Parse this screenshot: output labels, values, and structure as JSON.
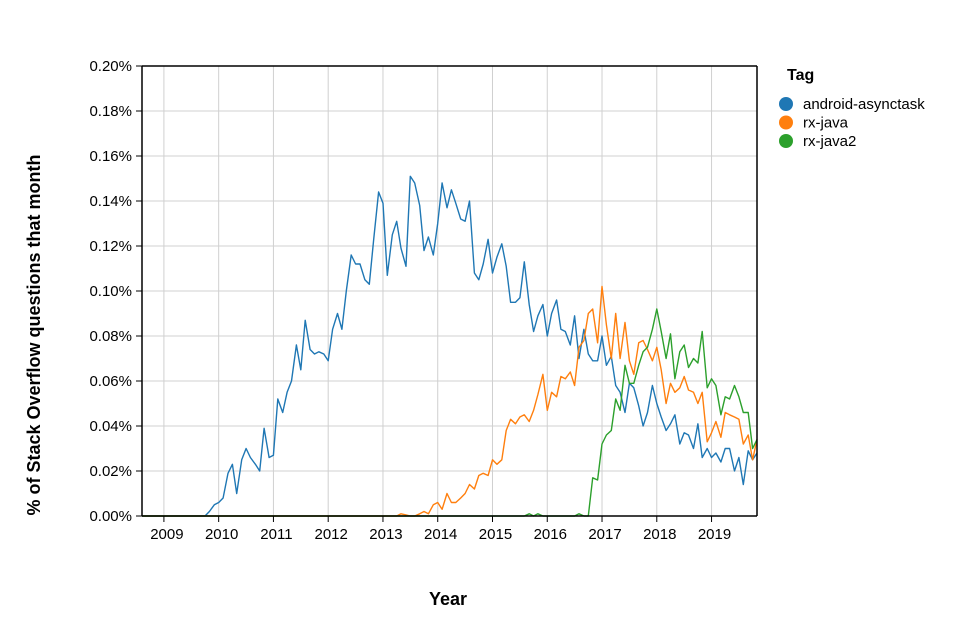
{
  "chart_data": {
    "type": "line",
    "xlabel": "Year",
    "ylabel": "% of Stack Overflow questions that month",
    "xlim": [
      2008.6,
      2019.83
    ],
    "ylim": [
      0,
      0.2
    ],
    "x_ticks": [
      2009,
      2010,
      2011,
      2012,
      2013,
      2014,
      2015,
      2016,
      2017,
      2018,
      2019
    ],
    "x_tick_labels": [
      "2009",
      "2010",
      "2011",
      "2012",
      "2013",
      "2014",
      "2015",
      "2016",
      "2017",
      "2018",
      "2019"
    ],
    "y_ticks": [
      0,
      0.02,
      0.04,
      0.06,
      0.08,
      0.1,
      0.12,
      0.14,
      0.16,
      0.18,
      0.2
    ],
    "y_tick_labels": [
      "0.00%",
      "0.02%",
      "0.04%",
      "0.06%",
      "0.08%",
      "0.10%",
      "0.12%",
      "0.14%",
      "0.16%",
      "0.18%",
      "0.20%"
    ],
    "grid": true,
    "legend": {
      "title": "Tag",
      "placement": "top-right"
    },
    "series": [
      {
        "name": "android-asynctask",
        "color": "#1f77b4",
        "points": [
          [
            2008.6,
            0
          ],
          [
            2009.5,
            0
          ],
          [
            2009.75,
            0
          ],
          [
            2009.83,
            0.002
          ],
          [
            2009.92,
            0.005
          ],
          [
            2010.0,
            0.006
          ],
          [
            2010.08,
            0.008
          ],
          [
            2010.17,
            0.019
          ],
          [
            2010.25,
            0.023
          ],
          [
            2010.33,
            0.01
          ],
          [
            2010.42,
            0.025
          ],
          [
            2010.5,
            0.03
          ],
          [
            2010.58,
            0.026
          ],
          [
            2010.67,
            0.023
          ],
          [
            2010.75,
            0.02
          ],
          [
            2010.83,
            0.039
          ],
          [
            2010.92,
            0.026
          ],
          [
            2011.0,
            0.027
          ],
          [
            2011.08,
            0.052
          ],
          [
            2011.17,
            0.046
          ],
          [
            2011.25,
            0.055
          ],
          [
            2011.33,
            0.06
          ],
          [
            2011.42,
            0.076
          ],
          [
            2011.5,
            0.065
          ],
          [
            2011.58,
            0.087
          ],
          [
            2011.67,
            0.074
          ],
          [
            2011.75,
            0.072
          ],
          [
            2011.83,
            0.073
          ],
          [
            2011.92,
            0.072
          ],
          [
            2012.0,
            0.069
          ],
          [
            2012.08,
            0.083
          ],
          [
            2012.17,
            0.09
          ],
          [
            2012.25,
            0.083
          ],
          [
            2012.33,
            0.1
          ],
          [
            2012.42,
            0.116
          ],
          [
            2012.5,
            0.112
          ],
          [
            2012.58,
            0.112
          ],
          [
            2012.67,
            0.105
          ],
          [
            2012.75,
            0.103
          ],
          [
            2012.83,
            0.123
          ],
          [
            2012.92,
            0.144
          ],
          [
            2013.0,
            0.139
          ],
          [
            2013.08,
            0.107
          ],
          [
            2013.17,
            0.125
          ],
          [
            2013.25,
            0.131
          ],
          [
            2013.33,
            0.119
          ],
          [
            2013.42,
            0.111
          ],
          [
            2013.5,
            0.151
          ],
          [
            2013.58,
            0.148
          ],
          [
            2013.67,
            0.138
          ],
          [
            2013.75,
            0.118
          ],
          [
            2013.83,
            0.124
          ],
          [
            2013.92,
            0.116
          ],
          [
            2014.0,
            0.13
          ],
          [
            2014.08,
            0.148
          ],
          [
            2014.17,
            0.137
          ],
          [
            2014.25,
            0.145
          ],
          [
            2014.33,
            0.139
          ],
          [
            2014.42,
            0.132
          ],
          [
            2014.5,
            0.131
          ],
          [
            2014.58,
            0.14
          ],
          [
            2014.67,
            0.108
          ],
          [
            2014.75,
            0.105
          ],
          [
            2014.83,
            0.112
          ],
          [
            2014.92,
            0.123
          ],
          [
            2015.0,
            0.108
          ],
          [
            2015.08,
            0.115
          ],
          [
            2015.17,
            0.121
          ],
          [
            2015.25,
            0.111
          ],
          [
            2015.33,
            0.095
          ],
          [
            2015.42,
            0.095
          ],
          [
            2015.5,
            0.097
          ],
          [
            2015.58,
            0.113
          ],
          [
            2015.67,
            0.094
          ],
          [
            2015.75,
            0.082
          ],
          [
            2015.83,
            0.089
          ],
          [
            2015.92,
            0.094
          ],
          [
            2016.0,
            0.08
          ],
          [
            2016.08,
            0.09
          ],
          [
            2016.17,
            0.096
          ],
          [
            2016.25,
            0.083
          ],
          [
            2016.33,
            0.082
          ],
          [
            2016.42,
            0.076
          ],
          [
            2016.5,
            0.089
          ],
          [
            2016.58,
            0.07
          ],
          [
            2016.67,
            0.083
          ],
          [
            2016.75,
            0.072
          ],
          [
            2016.83,
            0.069
          ],
          [
            2016.92,
            0.069
          ],
          [
            2017.0,
            0.08
          ],
          [
            2017.08,
            0.067
          ],
          [
            2017.17,
            0.071
          ],
          [
            2017.25,
            0.058
          ],
          [
            2017.33,
            0.055
          ],
          [
            2017.42,
            0.046
          ],
          [
            2017.5,
            0.059
          ],
          [
            2017.58,
            0.057
          ],
          [
            2017.67,
            0.049
          ],
          [
            2017.75,
            0.04
          ],
          [
            2017.83,
            0.046
          ],
          [
            2017.92,
            0.058
          ],
          [
            2018.0,
            0.05
          ],
          [
            2018.08,
            0.044
          ],
          [
            2018.17,
            0.038
          ],
          [
            2018.25,
            0.041
          ],
          [
            2018.33,
            0.045
          ],
          [
            2018.42,
            0.032
          ],
          [
            2018.5,
            0.037
          ],
          [
            2018.58,
            0.036
          ],
          [
            2018.67,
            0.03
          ],
          [
            2018.75,
            0.041
          ],
          [
            2018.83,
            0.026
          ],
          [
            2018.92,
            0.03
          ],
          [
            2019.0,
            0.026
          ],
          [
            2019.08,
            0.028
          ],
          [
            2019.17,
            0.024
          ],
          [
            2019.25,
            0.03
          ],
          [
            2019.33,
            0.03
          ],
          [
            2019.42,
            0.02
          ],
          [
            2019.5,
            0.026
          ],
          [
            2019.58,
            0.014
          ],
          [
            2019.67,
            0.029
          ],
          [
            2019.75,
            0.025
          ],
          [
            2019.83,
            0.028
          ]
        ]
      },
      {
        "name": "rx-java",
        "color": "#ff7f0e",
        "points": [
          [
            2008.6,
            0
          ],
          [
            2013.25,
            0
          ],
          [
            2013.33,
            0.001
          ],
          [
            2013.42,
            0.0005
          ],
          [
            2013.5,
            0
          ],
          [
            2013.58,
            0
          ],
          [
            2013.67,
            0.001
          ],
          [
            2013.75,
            0.002
          ],
          [
            2013.83,
            0.001
          ],
          [
            2013.92,
            0.005
          ],
          [
            2014.0,
            0.006
          ],
          [
            2014.08,
            0.003
          ],
          [
            2014.17,
            0.01
          ],
          [
            2014.25,
            0.006
          ],
          [
            2014.33,
            0.006
          ],
          [
            2014.42,
            0.008
          ],
          [
            2014.5,
            0.01
          ],
          [
            2014.58,
            0.014
          ],
          [
            2014.67,
            0.012
          ],
          [
            2014.75,
            0.018
          ],
          [
            2014.83,
            0.019
          ],
          [
            2014.92,
            0.018
          ],
          [
            2015.0,
            0.025
          ],
          [
            2015.08,
            0.023
          ],
          [
            2015.17,
            0.025
          ],
          [
            2015.25,
            0.038
          ],
          [
            2015.33,
            0.043
          ],
          [
            2015.42,
            0.041
          ],
          [
            2015.5,
            0.044
          ],
          [
            2015.58,
            0.045
          ],
          [
            2015.67,
            0.042
          ],
          [
            2015.75,
            0.047
          ],
          [
            2015.83,
            0.054
          ],
          [
            2015.92,
            0.063
          ],
          [
            2016.0,
            0.047
          ],
          [
            2016.08,
            0.055
          ],
          [
            2016.17,
            0.053
          ],
          [
            2016.25,
            0.062
          ],
          [
            2016.33,
            0.061
          ],
          [
            2016.42,
            0.064
          ],
          [
            2016.5,
            0.058
          ],
          [
            2016.58,
            0.075
          ],
          [
            2016.67,
            0.078
          ],
          [
            2016.75,
            0.09
          ],
          [
            2016.83,
            0.092
          ],
          [
            2016.92,
            0.077
          ],
          [
            2017.0,
            0.102
          ],
          [
            2017.08,
            0.085
          ],
          [
            2017.17,
            0.07
          ],
          [
            2017.25,
            0.09
          ],
          [
            2017.33,
            0.07
          ],
          [
            2017.42,
            0.086
          ],
          [
            2017.5,
            0.069
          ],
          [
            2017.58,
            0.063
          ],
          [
            2017.67,
            0.077
          ],
          [
            2017.75,
            0.078
          ],
          [
            2017.83,
            0.074
          ],
          [
            2017.92,
            0.069
          ],
          [
            2018.0,
            0.075
          ],
          [
            2018.08,
            0.065
          ],
          [
            2018.17,
            0.05
          ],
          [
            2018.25,
            0.059
          ],
          [
            2018.33,
            0.055
          ],
          [
            2018.42,
            0.057
          ],
          [
            2018.5,
            0.062
          ],
          [
            2018.58,
            0.056
          ],
          [
            2018.67,
            0.055
          ],
          [
            2018.75,
            0.05
          ],
          [
            2018.83,
            0.055
          ],
          [
            2018.92,
            0.033
          ],
          [
            2019.0,
            0.037
          ],
          [
            2019.08,
            0.042
          ],
          [
            2019.17,
            0.035
          ],
          [
            2019.25,
            0.046
          ],
          [
            2019.33,
            0.045
          ],
          [
            2019.42,
            0.044
          ],
          [
            2019.5,
            0.043
          ],
          [
            2019.58,
            0.032
          ],
          [
            2019.67,
            0.036
          ],
          [
            2019.75,
            0.025
          ],
          [
            2019.83,
            0.034
          ]
        ]
      },
      {
        "name": "rx-java2",
        "color": "#2ca02c",
        "points": [
          [
            2008.6,
            0
          ],
          [
            2015.58,
            0
          ],
          [
            2015.67,
            0.001
          ],
          [
            2015.75,
            0
          ],
          [
            2015.83,
            0.001
          ],
          [
            2015.92,
            0
          ],
          [
            2016.5,
            0
          ],
          [
            2016.58,
            0.001
          ],
          [
            2016.67,
            0
          ],
          [
            2016.75,
            0
          ],
          [
            2016.83,
            0.017
          ],
          [
            2016.92,
            0.016
          ],
          [
            2017.0,
            0.032
          ],
          [
            2017.08,
            0.036
          ],
          [
            2017.17,
            0.038
          ],
          [
            2017.25,
            0.052
          ],
          [
            2017.33,
            0.047
          ],
          [
            2017.42,
            0.067
          ],
          [
            2017.5,
            0.059
          ],
          [
            2017.58,
            0.059
          ],
          [
            2017.67,
            0.067
          ],
          [
            2017.75,
            0.073
          ],
          [
            2017.83,
            0.075
          ],
          [
            2017.92,
            0.083
          ],
          [
            2018.0,
            0.092
          ],
          [
            2018.08,
            0.082
          ],
          [
            2018.17,
            0.07
          ],
          [
            2018.25,
            0.081
          ],
          [
            2018.33,
            0.061
          ],
          [
            2018.42,
            0.073
          ],
          [
            2018.5,
            0.076
          ],
          [
            2018.58,
            0.066
          ],
          [
            2018.67,
            0.07
          ],
          [
            2018.75,
            0.068
          ],
          [
            2018.83,
            0.082
          ],
          [
            2018.92,
            0.057
          ],
          [
            2019.0,
            0.061
          ],
          [
            2019.08,
            0.058
          ],
          [
            2019.17,
            0.045
          ],
          [
            2019.25,
            0.053
          ],
          [
            2019.33,
            0.052
          ],
          [
            2019.42,
            0.058
          ],
          [
            2019.5,
            0.053
          ],
          [
            2019.58,
            0.046
          ],
          [
            2019.67,
            0.046
          ],
          [
            2019.75,
            0.03
          ],
          [
            2019.83,
            0.034
          ]
        ]
      }
    ]
  }
}
